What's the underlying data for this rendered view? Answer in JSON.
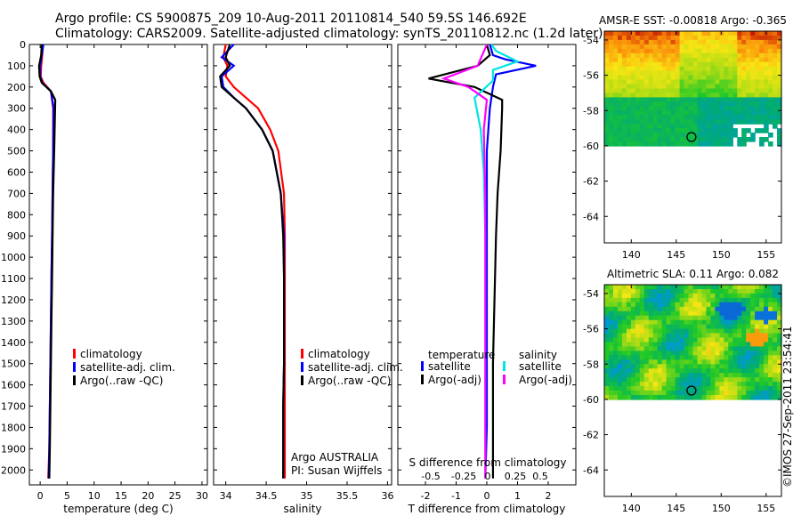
{
  "header": {
    "line1": "Argo profile: CS 5900875_209 10-Aug-2011 20110814_540 59.5S 146.692E",
    "line2": "Climatology: CARS2009. Satellite-adjusted climatology: synTS_20110812.nc (1.2d later)"
  },
  "stamp": "©IMOS 27-Sep-2011 23:54:41",
  "colors": {
    "climatology": "#ff0000",
    "satellite": "#0000ff",
    "argo": "#000000",
    "sat_s": "#00e5e5",
    "argo_s": "#ff00ff"
  },
  "chart_data": [
    {
      "type": "line",
      "title": "",
      "xlabel": "temperature (deg C)",
      "ylabel": "",
      "xlim": [
        -2,
        31
      ],
      "ylim": [
        2070,
        0
      ],
      "xticks": [
        "0",
        "5",
        "10",
        "15",
        "20",
        "25",
        "30"
      ],
      "xtick_values": [
        0,
        5,
        10,
        15,
        20,
        25,
        30
      ],
      "yticks": [
        "0",
        "100",
        "200",
        "300",
        "400",
        "500",
        "600",
        "700",
        "800",
        "900",
        "1000",
        "1100",
        "1200",
        "1300",
        "1400",
        "1500",
        "1600",
        "1700",
        "1800",
        "1900",
        "2000"
      ],
      "ytick_values": [
        0,
        100,
        200,
        300,
        400,
        500,
        600,
        700,
        800,
        900,
        1000,
        1100,
        1200,
        1300,
        1400,
        1500,
        1600,
        1700,
        1800,
        1900,
        2000
      ],
      "legend": [
        "climatology",
        "satellite-adj. clim.",
        "Argo(..raw -QC)"
      ],
      "legend_position": "lower-middle",
      "series": [
        {
          "color_key": "climatology",
          "x": [
            0.5,
            0.4,
            0.2,
            0.1,
            0.6,
            2.0,
            2.4,
            2.4,
            2.3,
            2.2,
            2.1,
            2.0,
            1.9,
            1.8,
            1.7,
            1.5
          ],
          "y": [
            0,
            50,
            100,
            150,
            180,
            220,
            300,
            500,
            700,
            900,
            1100,
            1300,
            1500,
            1700,
            1900,
            2040
          ]
        },
        {
          "color_key": "satellite",
          "x": [
            0.6,
            0.3,
            0.0,
            0.0,
            0.4,
            2.0,
            2.5,
            2.4,
            2.3,
            2.2,
            2.1,
            2.0,
            1.9,
            1.8,
            1.7,
            1.6
          ],
          "y": [
            0,
            50,
            100,
            150,
            180,
            220,
            300,
            500,
            700,
            900,
            1100,
            1300,
            1500,
            1700,
            1900,
            2040
          ]
        },
        {
          "color_key": "argo",
          "x": [
            0.3,
            0.2,
            -0.2,
            -0.1,
            0.3,
            2.0,
            2.8,
            2.6,
            2.4,
            2.3,
            2.2,
            2.1,
            2.0,
            1.9,
            1.8,
            1.7
          ],
          "y": [
            0,
            50,
            100,
            150,
            180,
            220,
            260,
            500,
            700,
            900,
            1100,
            1300,
            1500,
            1700,
            1900,
            2040
          ]
        }
      ]
    },
    {
      "type": "line",
      "title": "",
      "xlabel": "salinity",
      "ylabel": "",
      "xlim": [
        33.85,
        36.05
      ],
      "ylim": [
        2070,
        0
      ],
      "xticks": [
        "34",
        "34.5",
        "35",
        "35.5",
        "36"
      ],
      "xtick_values": [
        34,
        34.5,
        35,
        35.5,
        36
      ],
      "legend": [
        "climatology",
        "satellite-adj. clim.",
        "Argo(..raw -QC)"
      ],
      "legend_position": "lower-right",
      "annotation": [
        "Argo AUSTRALIA",
        "PI: Susan Wijffels"
      ],
      "series": [
        {
          "color_key": "climatology",
          "x": [
            34.0,
            33.97,
            34.02,
            34.0,
            34.1,
            34.25,
            34.4,
            34.55,
            34.65,
            34.72,
            34.73,
            34.73,
            34.73,
            34.73,
            34.73,
            34.73
          ],
          "y": [
            0,
            60,
            100,
            150,
            200,
            250,
            300,
            400,
            500,
            700,
            900,
            1100,
            1300,
            1500,
            1700,
            2040
          ]
        },
        {
          "color_key": "satellite",
          "x": [
            34.1,
            33.95,
            34.1,
            33.95,
            33.97,
            34.1,
            34.25,
            34.45,
            34.58,
            34.68,
            34.72,
            34.72,
            34.72,
            34.72,
            34.71,
            34.71
          ],
          "y": [
            0,
            60,
            100,
            150,
            200,
            250,
            300,
            400,
            500,
            700,
            900,
            1100,
            1300,
            1500,
            1700,
            2040
          ]
        },
        {
          "color_key": "argo",
          "x": [
            34.05,
            34.0,
            34.05,
            33.93,
            33.95,
            34.1,
            34.25,
            34.45,
            34.58,
            34.68,
            34.71,
            34.72,
            34.72,
            34.72,
            34.71,
            34.71
          ],
          "y": [
            0,
            60,
            100,
            150,
            200,
            250,
            300,
            400,
            500,
            700,
            900,
            1100,
            1300,
            1500,
            1700,
            2040
          ]
        }
      ]
    },
    {
      "type": "line",
      "title": "",
      "xlabel": "T difference from climatology",
      "ylabel": "",
      "xlim": [
        -2.9,
        2.9
      ],
      "ylim": [
        2070,
        0
      ],
      "xticks": [
        "-2",
        "-1",
        "0",
        "1",
        "2"
      ],
      "xtick_values": [
        -2,
        -1,
        0,
        1,
        2
      ],
      "top_axis_label": "S difference from climatology",
      "top_xticks": [
        "-0.5",
        "-0.25",
        "0",
        "0.25",
        "0.5"
      ],
      "top_xtick_values": [
        -0.5,
        -0.25,
        0,
        0.25,
        0.5
      ],
      "legend_groups": [
        {
          "heading": "temperature",
          "items": [
            "satellite",
            "Argo(-adj)"
          ]
        },
        {
          "heading": "salinity",
          "items": [
            "satellite",
            "Argo(-adj)"
          ]
        }
      ],
      "series": [
        {
          "color_key": "satellite",
          "x": [
            0.1,
            0.2,
            0.6,
            1.6,
            0.3,
            0.2,
            0.1,
            0.0,
            0.0,
            0.0,
            0.0,
            0.0,
            0.0,
            -0.05
          ],
          "y": [
            0,
            50,
            70,
            100,
            140,
            200,
            300,
            500,
            700,
            900,
            1200,
            1500,
            1800,
            2040
          ]
        },
        {
          "color_key": "argo",
          "x": [
            0.0,
            0.1,
            -0.3,
            -1.9,
            -0.4,
            0.5,
            0.5,
            0.45,
            0.35,
            0.3,
            0.25,
            0.2,
            0.2,
            0.2
          ],
          "y": [
            0,
            50,
            100,
            160,
            200,
            260,
            300,
            500,
            700,
            900,
            1200,
            1500,
            1800,
            2040
          ]
        },
        {
          "color_key": "sat_s",
          "x": [
            0.15,
            0.3,
            1.0,
            0.2,
            0.2,
            -0.4,
            -0.2,
            -0.1,
            -0.05,
            -0.05,
            -0.05,
            -0.05
          ],
          "y": [
            0,
            30,
            80,
            120,
            170,
            250,
            400,
            600,
            900,
            1300,
            1700,
            2040
          ]
        },
        {
          "color_key": "argo_s",
          "x": [
            0.0,
            -0.3,
            -1.4,
            -0.6,
            0.0,
            -0.1,
            -0.05,
            -0.05,
            -0.05,
            -0.05,
            -0.05
          ],
          "y": [
            0,
            100,
            160,
            200,
            260,
            400,
            700,
            1000,
            1400,
            1800,
            2040
          ]
        }
      ]
    },
    {
      "type": "heatmap",
      "title": "AMSR-E SST: -0.00818 Argo: -0.365",
      "xticks": [
        "140",
        "145",
        "150",
        "155"
      ],
      "xtick_values": [
        140,
        145,
        150,
        155
      ],
      "yticks": [
        "-54",
        "-56",
        "-58",
        "-60",
        "-62",
        "-64"
      ],
      "ytick_values": [
        -54,
        -56,
        -58,
        -60,
        -62,
        -64
      ],
      "xlim": [
        137,
        156.7
      ],
      "ylim": [
        -65.5,
        -53.5
      ],
      "marker": {
        "lon": 146.692,
        "lat": -59.5
      }
    },
    {
      "type": "heatmap",
      "title": "Altimetric SLA: 0.11 Argo: 0.082",
      "xticks": [
        "140",
        "145",
        "150",
        "155"
      ],
      "xtick_values": [
        140,
        145,
        150,
        155
      ],
      "yticks": [
        "-54",
        "-56",
        "-58",
        "-60",
        "-62",
        "-64"
      ],
      "ytick_values": [
        -54,
        -56,
        -58,
        -60,
        -62,
        -64
      ],
      "xlim": [
        137,
        156.7
      ],
      "ylim": [
        -65.5,
        -53.5
      ],
      "marker": {
        "lon": 146.692,
        "lat": -59.5
      }
    }
  ]
}
